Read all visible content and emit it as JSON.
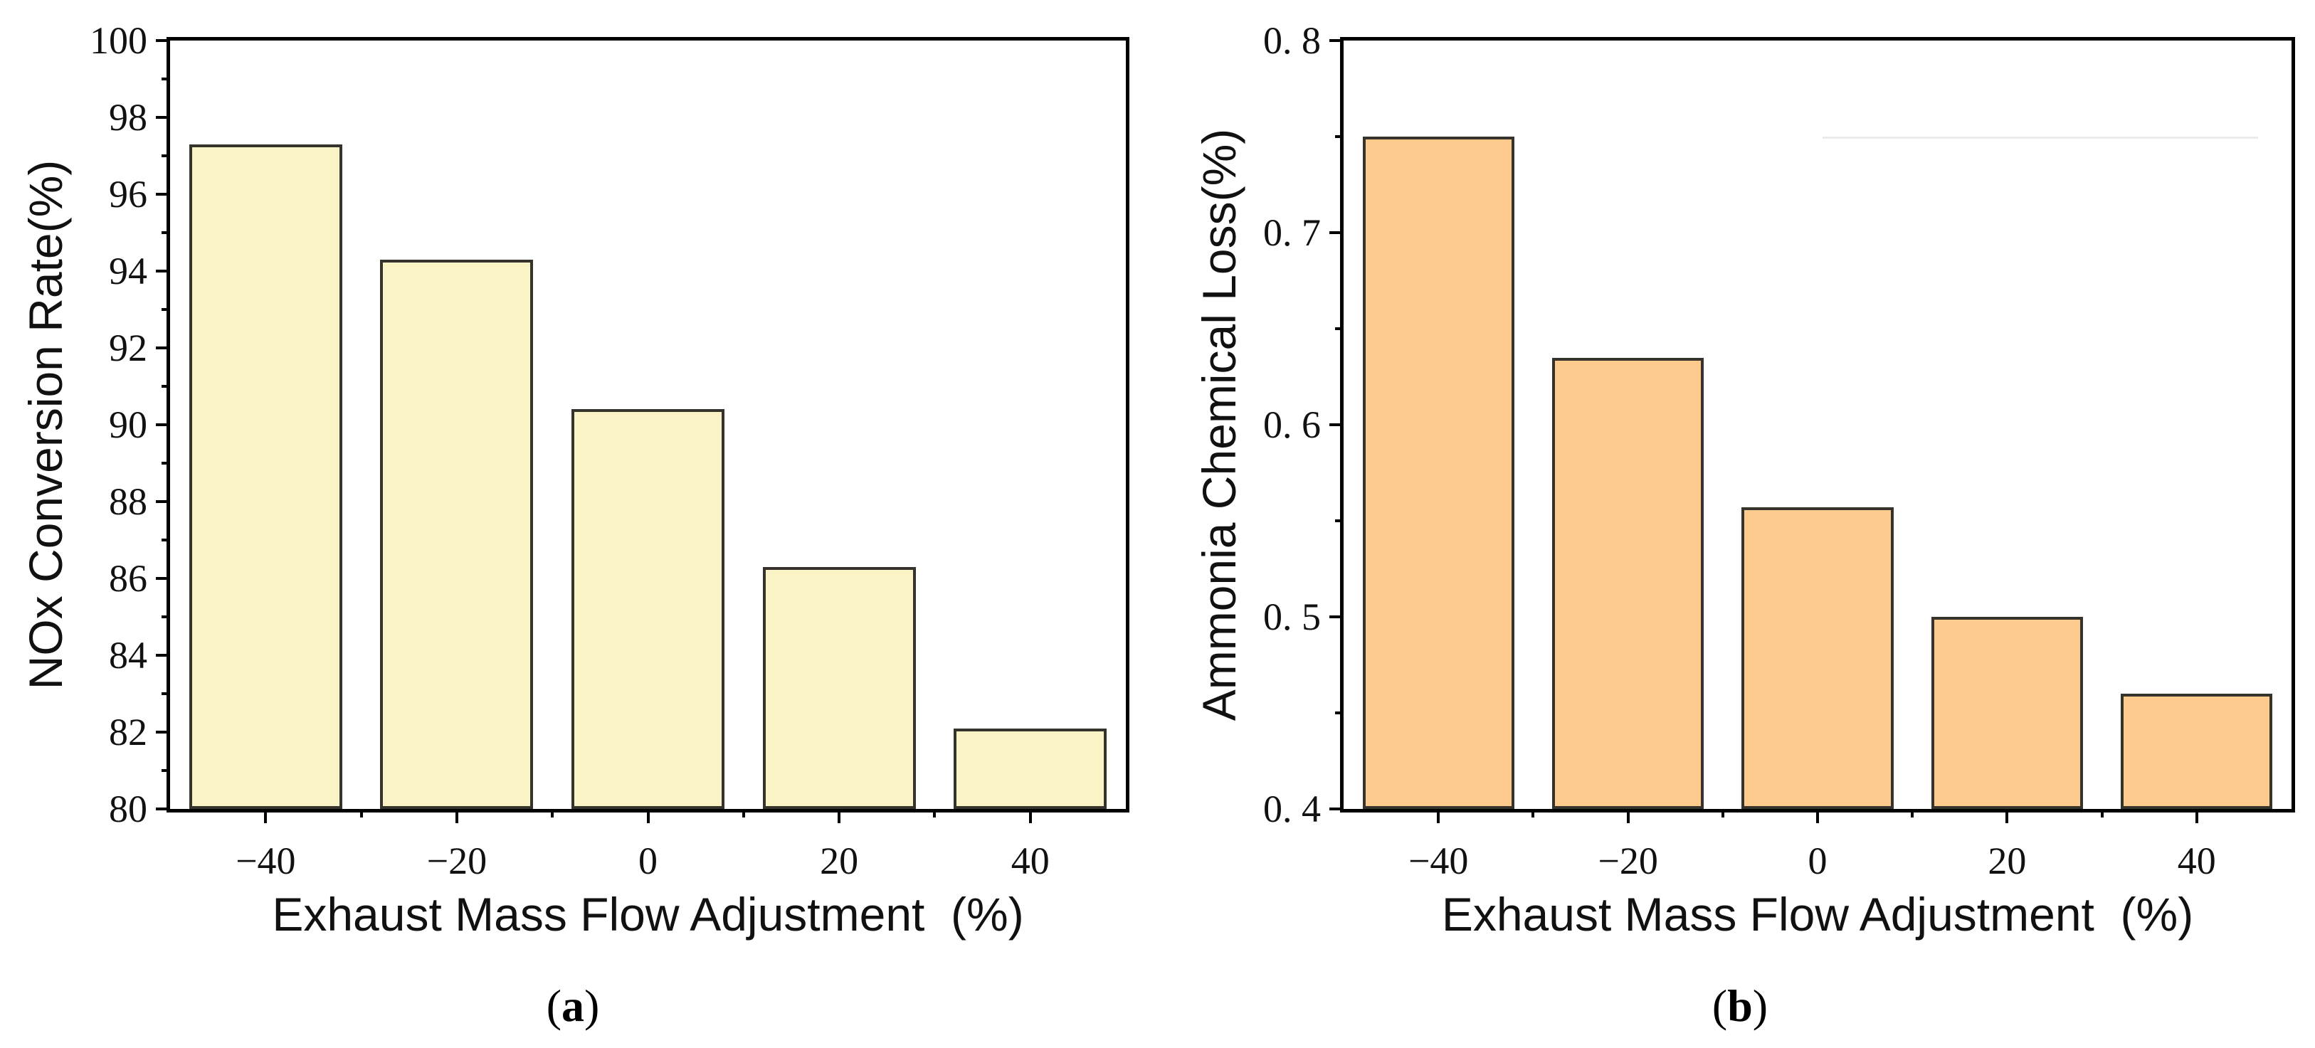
{
  "figure_captions": {
    "a": {
      "open": "(",
      "letter": "a",
      "close": ")"
    },
    "b": {
      "open": "(",
      "letter": "b",
      "close": ")"
    }
  },
  "chart_data": [
    {
      "type": "bar",
      "panel": "a",
      "title": "",
      "categories": [
        "−40",
        "−20",
        "0",
        "20",
        "40"
      ],
      "values": [
        97.3,
        94.3,
        90.4,
        86.3,
        82.1
      ],
      "xlabel": "Exhaust Mass Flow Adjustment  (%)",
      "ylabel": "NOx Conversion Rate(%)",
      "ylim": [
        80,
        100
      ],
      "y_major_ticks": [
        {
          "v": 80,
          "label": "80"
        },
        {
          "v": 82,
          "label": "82"
        },
        {
          "v": 84,
          "label": "84"
        },
        {
          "v": 86,
          "label": "86"
        },
        {
          "v": 88,
          "label": "88"
        },
        {
          "v": 90,
          "label": "90"
        },
        {
          "v": 92,
          "label": "92"
        },
        {
          "v": 94,
          "label": "94"
        },
        {
          "v": 96,
          "label": "96"
        },
        {
          "v": 98,
          "label": "98"
        },
        {
          "v": 100,
          "label": "100"
        }
      ],
      "y_minor_ticks": [
        81,
        83,
        85,
        87,
        89,
        91,
        93,
        95,
        97,
        99
      ],
      "bar_width_frac": 0.8,
      "bar_color": "#faf3c6",
      "bar_border_color": "#35332b",
      "axis_color": "#000000",
      "grid": false,
      "legend": null
    },
    {
      "type": "bar",
      "panel": "b",
      "title": "",
      "categories": [
        "−40",
        "−20",
        "0",
        "20",
        "40"
      ],
      "values": [
        0.75,
        0.635,
        0.557,
        0.5,
        0.46
      ],
      "xlabel": "Exhaust Mass Flow Adjustment  (%)",
      "ylabel": "Ammonia Chemical Loss(%)",
      "ylim": [
        0.4,
        0.8
      ],
      "y_major_ticks": [
        {
          "v": 0.4,
          "label": "0. 4"
        },
        {
          "v": 0.5,
          "label": "0. 5"
        },
        {
          "v": 0.6,
          "label": "0. 6"
        },
        {
          "v": 0.7,
          "label": "0. 7"
        },
        {
          "v": 0.8,
          "label": "0. 8"
        }
      ],
      "y_minor_ticks": [
        0.45,
        0.55,
        0.65,
        0.75
      ],
      "bar_width_frac": 0.8,
      "bar_color": "#fbca8c",
      "bar_border_color": "#35332b",
      "axis_color": "#000000",
      "grid": false,
      "legend": null,
      "artifact_line": {
        "y": 0.75,
        "x_start_frac": 0.505,
        "x_end_frac": 0.965,
        "color": "#ebebeb"
      }
    }
  ]
}
